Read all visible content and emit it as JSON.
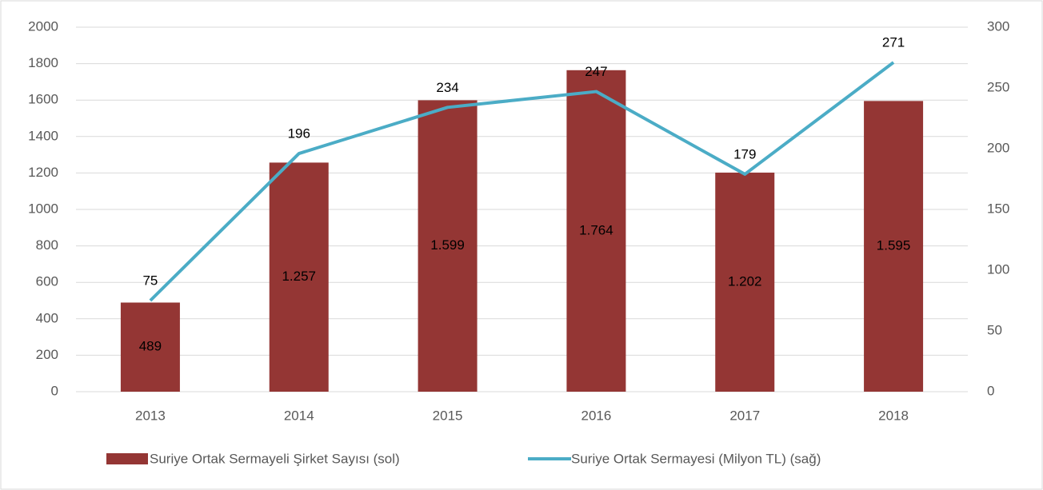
{
  "chart_data": {
    "type": "bar",
    "categories": [
      "2013",
      "2014",
      "2015",
      "2016",
      "2017",
      "2018"
    ],
    "series": [
      {
        "name": "Suriye Ortak Sermayeli Şirket Sayısı (sol)",
        "type": "bar",
        "color": "#943634",
        "values": [
          489,
          1257,
          1599,
          1764,
          1202,
          1595
        ],
        "value_labels": [
          "489",
          "1.257",
          "1.599",
          "1.764",
          "1.202",
          "1.595"
        ]
      },
      {
        "name": "Suriye Ortak Sermayesi (Milyon TL) (sağ)",
        "type": "line",
        "color": "#4bacc6",
        "axis": "y2",
        "values": [
          75,
          196,
          234,
          247,
          179,
          271
        ]
      }
    ],
    "ylim": [
      0,
      2000
    ],
    "yticks": [
      0,
      200,
      400,
      600,
      800,
      1000,
      1200,
      1400,
      1600,
      1800,
      2000
    ],
    "y2lim": [
      0,
      300
    ],
    "y2ticks": [
      0,
      50,
      100,
      150,
      200,
      250,
      300
    ],
    "grid": true,
    "legend": "bottom"
  }
}
